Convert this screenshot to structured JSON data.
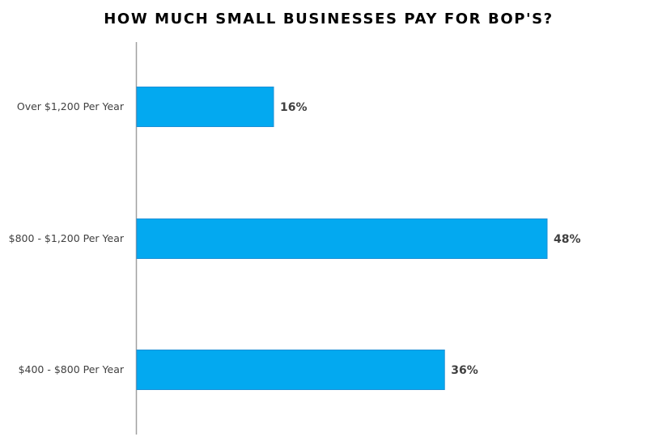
{
  "colors": {
    "bar": "#03A9F0",
    "bar_edge": "#1E90D6",
    "axis": "#a0a0a0",
    "text": "#404040",
    "title": "#000000"
  },
  "chart_data": {
    "type": "bar",
    "orientation": "horizontal",
    "title": "HOW MUCH SMALL BUSINESSES PAY FOR BOP'S?",
    "xlabel": "",
    "ylabel": "",
    "categories": [
      "Over $1,200 Per Year",
      "$800 - $1,200 Per Year",
      "$400 - $800 Per Year"
    ],
    "values": [
      16,
      48,
      36
    ],
    "value_labels": [
      "16%",
      "48%",
      "36%"
    ],
    "unit": "%",
    "xlim": [
      0,
      53
    ],
    "grid": false,
    "legend": "none"
  }
}
